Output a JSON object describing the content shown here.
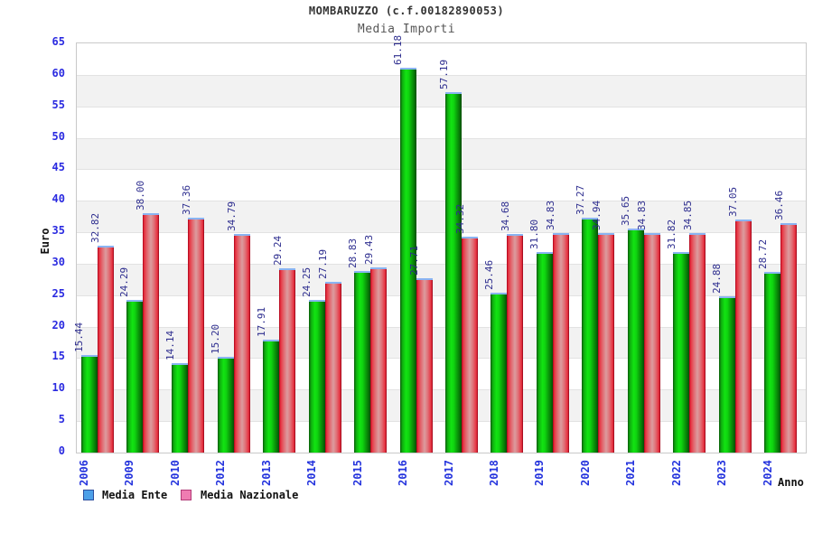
{
  "chart_data": {
    "type": "bar",
    "title": "MOMBARUZZO (c.f.00182890053)",
    "subtitle": "Media Importi",
    "xlabel": "Anno",
    "ylabel": "Euro",
    "ylim": [
      0,
      65
    ],
    "ytick_step": 5,
    "yticks": [
      0,
      5,
      10,
      15,
      20,
      25,
      30,
      35,
      40,
      45,
      50,
      55,
      60,
      65
    ],
    "grid": true,
    "legend_position": "bottom-left",
    "categories": [
      "2006",
      "2009",
      "2010",
      "2012",
      "2013",
      "2014",
      "2015",
      "2016",
      "2017",
      "2018",
      "2019",
      "2020",
      "2021",
      "2022",
      "2023",
      "2024"
    ],
    "series": [
      {
        "name": "Media Ente",
        "bar_color": "#12e412",
        "legend_fill": "#4da0e8",
        "legend_border": "#2d4f9e",
        "values": [
          15.44,
          24.29,
          14.14,
          15.2,
          17.91,
          24.25,
          28.83,
          61.18,
          57.19,
          25.46,
          31.8,
          37.27,
          35.65,
          31.82,
          24.88,
          28.72
        ]
      },
      {
        "name": "Media Nazionale",
        "bar_color": "#e8313f",
        "legend_fill": "#ef7cb2",
        "legend_border": "#b23a77",
        "values": [
          32.82,
          38.0,
          37.36,
          34.79,
          29.24,
          27.19,
          29.43,
          27.71,
          34.32,
          34.68,
          34.83,
          34.94,
          34.83,
          34.85,
          37.05,
          36.46
        ]
      }
    ],
    "colors": {
      "band_gray": "#f2f2f2",
      "gridline": "#e2e2e2",
      "plot_border": "#c9c9c9",
      "ytick_label": "#2a2ae0",
      "value_label": "#2e2e8f",
      "year_label": "#2433dd",
      "bar_cap": "#8ab4f2"
    }
  }
}
